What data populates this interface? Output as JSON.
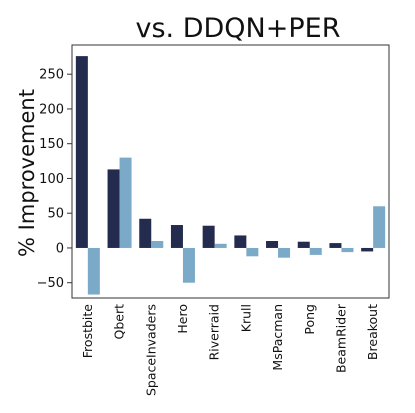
{
  "chart_data": {
    "type": "bar",
    "title": "vs. DDQN+PER",
    "xlabel": "",
    "ylabel": "% Improvement",
    "categories": [
      "Frostbite",
      "Qbert",
      "SpaceInvaders",
      "Hero",
      "Riverraid",
      "Krull",
      "MsPacman",
      "Pong",
      "BeamRider",
      "Breakout"
    ],
    "series": [
      {
        "values": [
          276,
          113,
          42,
          33,
          32,
          18,
          10,
          9,
          7,
          -5
        ],
        "color": "#232b4e"
      },
      {
        "values": [
          -67,
          130,
          10,
          -50,
          6,
          -12,
          -14,
          -10,
          -6,
          60
        ],
        "color": "#7aaac7"
      }
    ],
    "ylim": [
      -72,
      292
    ],
    "yticks": [
      -50,
      0,
      50,
      100,
      150,
      200,
      250
    ],
    "grid": false,
    "legend": "none"
  }
}
